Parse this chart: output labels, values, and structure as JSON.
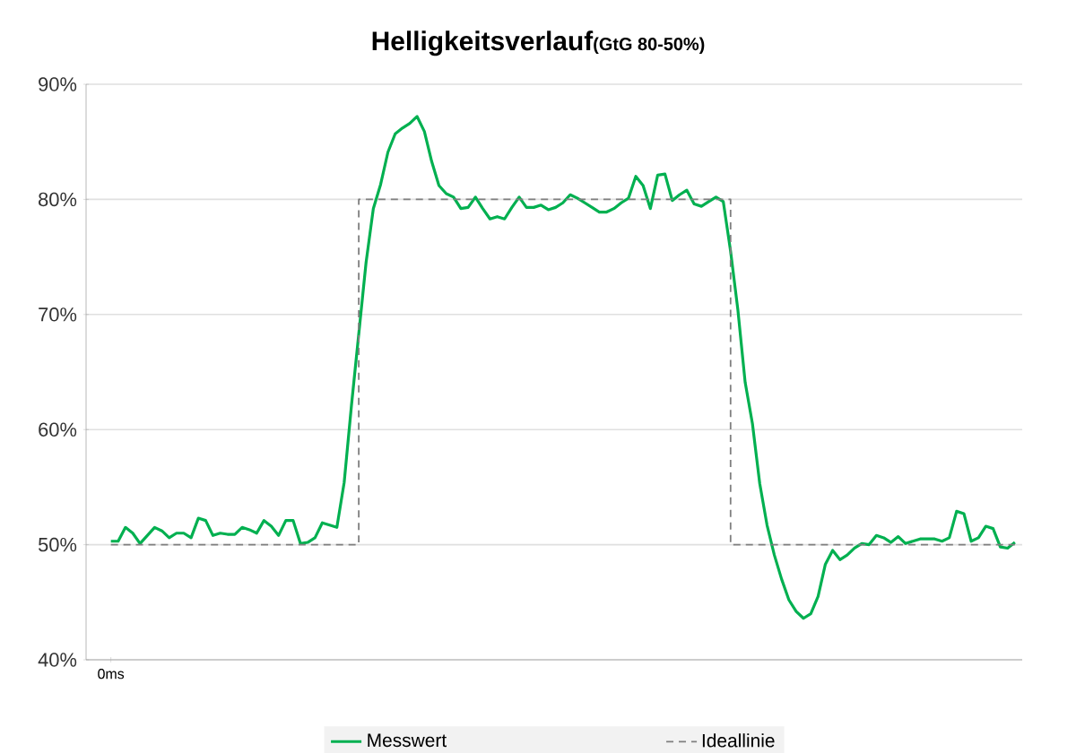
{
  "chart_data": {
    "type": "line",
    "title": "Helligkeitsverlauf",
    "subtitle": "(GtG 80-50%)",
    "categories": [
      "0ms",
      null,
      null,
      null,
      null,
      null,
      null,
      null,
      null,
      null,
      null,
      null,
      null,
      null,
      null,
      null,
      null,
      null,
      null,
      null,
      null,
      null,
      null,
      null,
      null,
      null,
      null,
      null,
      null,
      null,
      null,
      null,
      null,
      null,
      null,
      null,
      null,
      null,
      null,
      null,
      null,
      null,
      null,
      null,
      null,
      null,
      null,
      null,
      null,
      null,
      null,
      null,
      null,
      null,
      null,
      null,
      null,
      null,
      null,
      null,
      null,
      null,
      null,
      null,
      null,
      null,
      null,
      null,
      null,
      null,
      null,
      null,
      null,
      null,
      null,
      null,
      null,
      null,
      null,
      null,
      null,
      null,
      null,
      null,
      null,
      null,
      null,
      null,
      null,
      null,
      null,
      null,
      null,
      null,
      null,
      null,
      null,
      null,
      null,
      null,
      null,
      null,
      null,
      null,
      null,
      null,
      null,
      null,
      null,
      null,
      null,
      null,
      null,
      null,
      null,
      null,
      null,
      null,
      null,
      null,
      null,
      null,
      null,
      null,
      null
    ],
    "series": [
      {
        "name": "Messwert",
        "color": "#00b050",
        "line_style": "solid",
        "values": [
          50.3,
          50.3,
          51.5,
          51,
          50.1,
          50.8,
          51.5,
          51.2,
          50.6,
          51,
          51,
          50.6,
          52.3,
          52.1,
          50.8,
          51,
          50.9,
          50.9,
          51.5,
          51.3,
          51,
          52.1,
          51.6,
          50.8,
          52.1,
          52.1,
          50.1,
          50.2,
          50.6,
          51.9,
          51.7,
          51.5,
          55.4,
          62.1,
          68.3,
          74.5,
          79.2,
          81.3,
          84.1,
          85.7,
          86.2,
          86.6,
          87.2,
          85.9,
          83.3,
          81.2,
          80.5,
          80.2,
          79.2,
          79.3,
          80.2,
          79.2,
          78.3,
          78.5,
          78.3,
          79.3,
          80.2,
          79.3,
          79.3,
          79.5,
          79.1,
          79.3,
          79.7,
          80.4,
          80.1,
          79.7,
          79.3,
          78.9,
          78.9,
          79.2,
          79.7,
          80.1,
          82,
          81.2,
          79.2,
          82.1,
          82.2,
          79.9,
          80.4,
          80.8,
          79.6,
          79.4,
          79.8,
          80.2,
          79.8,
          75.5,
          70.4,
          64.1,
          60.5,
          55.3,
          51.7,
          49.1,
          47,
          45.2,
          44.2,
          43.6,
          44,
          45.5,
          48.3,
          49.5,
          48.7,
          49.1,
          49.7,
          50.1,
          50,
          50.8,
          50.6,
          50.2,
          50.7,
          50.1,
          50.3,
          50.5,
          50.5,
          50.5,
          50.3,
          50.6,
          52.9,
          52.7,
          50.3,
          50.6,
          51.6,
          51.4,
          49.8,
          49.7,
          50.2
        ]
      },
      {
        "name": "Ideallinie",
        "color": "#7f7f7f",
        "type": "step",
        "line_style": "dashed",
        "values": [
          50,
          50,
          50,
          50,
          50,
          50,
          50,
          50,
          50,
          50,
          50,
          50,
          50,
          50,
          50,
          50,
          50,
          50,
          50,
          50,
          50,
          50,
          50,
          50,
          50,
          50,
          50,
          50,
          50,
          50,
          50,
          50,
          50,
          50,
          80,
          80,
          80,
          80,
          80,
          80,
          80,
          80,
          80,
          80,
          80,
          80,
          80,
          80,
          80,
          80,
          80,
          80,
          80,
          80,
          80,
          80,
          80,
          80,
          80,
          80,
          80,
          80,
          80,
          80,
          80,
          80,
          80,
          80,
          80,
          80,
          80,
          80,
          80,
          80,
          80,
          80,
          80,
          80,
          80,
          80,
          80,
          80,
          80,
          80,
          80,
          50,
          50,
          50,
          50,
          50,
          50,
          50,
          50,
          50,
          50,
          50,
          50,
          50,
          50,
          50,
          50,
          50,
          50,
          50,
          50,
          50,
          50,
          50,
          50,
          50,
          50,
          50,
          50,
          50,
          50,
          50,
          50,
          50,
          50,
          50,
          50,
          50,
          50,
          50,
          50
        ]
      }
    ],
    "ylim": [
      40,
      90
    ],
    "yticks": [
      {
        "value": 40,
        "label": "40%"
      },
      {
        "value": 50,
        "label": "50%"
      },
      {
        "value": 60,
        "label": "60%"
      },
      {
        "value": 70,
        "label": "70%"
      },
      {
        "value": 80,
        "label": "80%"
      },
      {
        "value": 90,
        "label": "90%"
      }
    ],
    "grid": "y",
    "legend": "bottom",
    "marker": "none"
  }
}
